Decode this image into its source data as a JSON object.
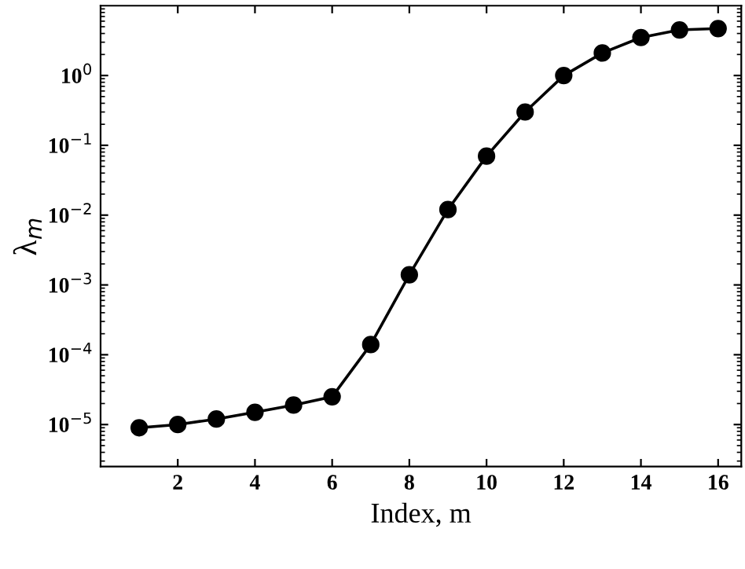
{
  "chart_data": {
    "type": "line",
    "xlabel": "Index, m",
    "ylabel": "λ$_{m}$",
    "log": "y",
    "marker": "circle",
    "line_style": "solid",
    "grid": false,
    "legend": false,
    "x": [
      1,
      2,
      3,
      4,
      5,
      6,
      7,
      8,
      9,
      10,
      11,
      12,
      13,
      14,
      15,
      16
    ],
    "series": [
      {
        "color": "#000000",
        "values": [
          9e-06,
          1e-05,
          1.2e-05,
          1.5e-05,
          1.9e-05,
          2.5e-05,
          0.00014,
          0.0014,
          0.012,
          0.07,
          0.3,
          1.0,
          2.1,
          3.5,
          4.5,
          4.7
        ]
      }
    ],
    "xlim": [
      0,
      16.6
    ],
    "xticks": [
      2,
      4,
      6,
      8,
      10,
      12,
      14,
      16
    ],
    "ylim": [
      2.5e-06,
      10
    ],
    "yticks": [
      {
        "value": 1e-05,
        "label": "10$^{−5}$"
      },
      {
        "value": 0.0001,
        "label": "10$^{−4}$"
      },
      {
        "value": 0.001,
        "label": "10$^{−3}$"
      },
      {
        "value": 0.01,
        "label": "10$^{−2}$"
      },
      {
        "value": 0.1,
        "label": "10$^{−1}$"
      },
      {
        "value": 1,
        "label": "10$^{0}$"
      }
    ]
  }
}
